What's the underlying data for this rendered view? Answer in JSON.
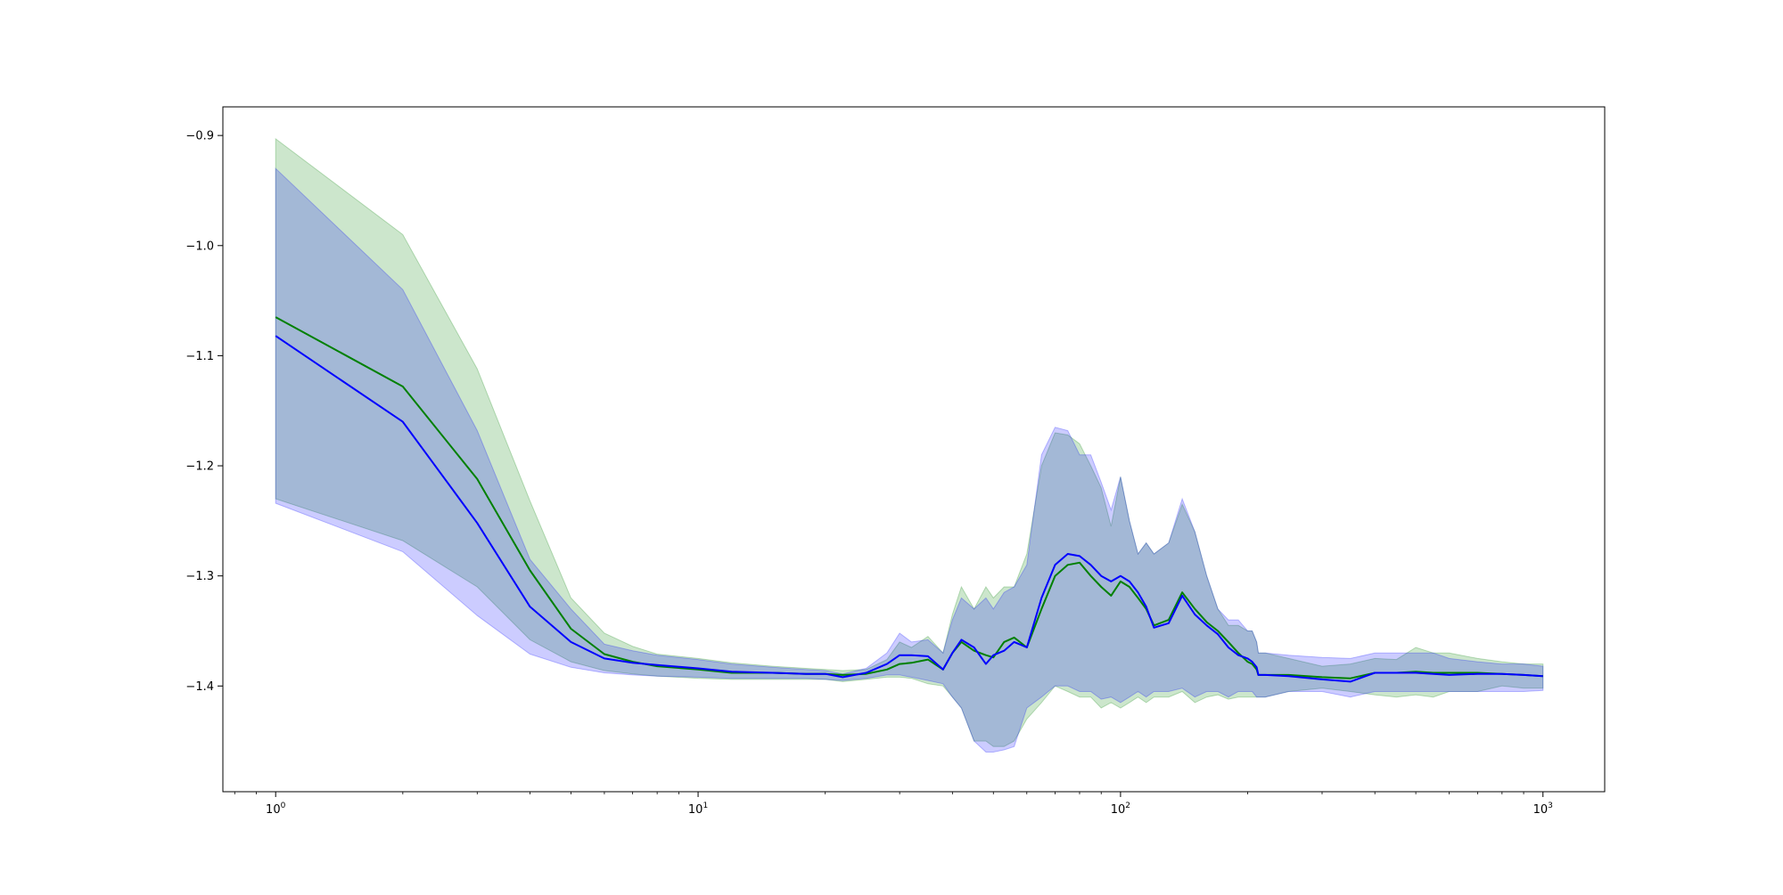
{
  "chart_data": {
    "type": "line",
    "title": "",
    "xlabel": "",
    "ylabel": "",
    "xscale": "log",
    "xlim": [
      0.75,
      1400
    ],
    "ylim": [
      -1.496,
      -0.874
    ],
    "grid": false,
    "legend": "none",
    "x_ticks": [
      {
        "value": 1,
        "base": "10",
        "exp": "0"
      },
      {
        "value": 10,
        "base": "10",
        "exp": "1"
      },
      {
        "value": 100,
        "base": "10",
        "exp": "2"
      },
      {
        "value": 1000,
        "base": "10",
        "exp": "3"
      }
    ],
    "y_ticks": [
      {
        "value": -0.9,
        "label": "−0.9"
      },
      {
        "value": -1.0,
        "label": "−1.0"
      },
      {
        "value": -1.1,
        "label": "−1.1"
      },
      {
        "value": -1.2,
        "label": "−1.2"
      },
      {
        "value": -1.3,
        "label": "−1.3"
      },
      {
        "value": -1.4,
        "label": "−1.4"
      }
    ],
    "x": [
      1,
      2,
      3,
      4,
      5,
      6,
      7,
      8,
      10,
      12,
      15,
      18,
      20,
      22,
      25,
      28,
      30,
      32,
      35,
      38,
      40,
      42,
      45,
      48,
      50,
      53,
      56,
      60,
      65,
      70,
      75,
      80,
      85,
      90,
      95,
      100,
      105,
      110,
      115,
      120,
      130,
      140,
      150,
      160,
      170,
      180,
      190,
      200,
      205,
      210,
      212,
      220,
      250,
      300,
      350,
      400,
      450,
      500,
      550,
      600,
      700,
      800,
      900,
      1000
    ],
    "series": [
      {
        "color": "#008000",
        "band_color": "#008000",
        "band_opacity": 0.2,
        "values": [
          -1.065,
          -1.128,
          -1.212,
          -1.295,
          -1.348,
          -1.371,
          -1.378,
          -1.382,
          -1.385,
          -1.388,
          -1.388,
          -1.389,
          -1.389,
          -1.39,
          -1.389,
          -1.385,
          -1.38,
          -1.379,
          -1.376,
          -1.385,
          -1.37,
          -1.36,
          -1.368,
          -1.372,
          -1.374,
          -1.36,
          -1.356,
          -1.365,
          -1.33,
          -1.3,
          -1.29,
          -1.288,
          -1.3,
          -1.31,
          -1.318,
          -1.305,
          -1.31,
          -1.32,
          -1.33,
          -1.345,
          -1.34,
          -1.315,
          -1.33,
          -1.342,
          -1.35,
          -1.36,
          -1.37,
          -1.378,
          -1.38,
          -1.385,
          -1.39,
          -1.39,
          -1.39,
          -1.392,
          -1.393,
          -1.388,
          -1.388,
          -1.387,
          -1.388,
          -1.388,
          -1.388,
          -1.389,
          -1.39,
          -1.391
        ],
        "upper": [
          -0.903,
          -0.99,
          -1.112,
          -1.232,
          -1.32,
          -1.352,
          -1.364,
          -1.371,
          -1.375,
          -1.379,
          -1.382,
          -1.384,
          -1.385,
          -1.386,
          -1.385,
          -1.376,
          -1.36,
          -1.365,
          -1.355,
          -1.37,
          -1.335,
          -1.31,
          -1.33,
          -1.31,
          -1.32,
          -1.31,
          -1.31,
          -1.28,
          -1.2,
          -1.17,
          -1.172,
          -1.18,
          -1.2,
          -1.22,
          -1.255,
          -1.21,
          -1.25,
          -1.28,
          -1.27,
          -1.28,
          -1.27,
          -1.235,
          -1.26,
          -1.3,
          -1.33,
          -1.345,
          -1.345,
          -1.35,
          -1.35,
          -1.36,
          -1.37,
          -1.37,
          -1.375,
          -1.382,
          -1.38,
          -1.375,
          -1.376,
          -1.365,
          -1.37,
          -1.37,
          -1.375,
          -1.378,
          -1.38,
          -1.38
        ],
        "lower": [
          -1.23,
          -1.268,
          -1.31,
          -1.358,
          -1.378,
          -1.386,
          -1.389,
          -1.391,
          -1.393,
          -1.394,
          -1.394,
          -1.394,
          -1.394,
          -1.396,
          -1.394,
          -1.392,
          -1.392,
          -1.393,
          -1.398,
          -1.4,
          -1.41,
          -1.42,
          -1.45,
          -1.45,
          -1.455,
          -1.455,
          -1.45,
          -1.43,
          -1.415,
          -1.4,
          -1.405,
          -1.41,
          -1.41,
          -1.42,
          -1.415,
          -1.42,
          -1.415,
          -1.41,
          -1.415,
          -1.41,
          -1.41,
          -1.405,
          -1.415,
          -1.41,
          -1.408,
          -1.412,
          -1.41,
          -1.41,
          -1.41,
          -1.41,
          -1.41,
          -1.41,
          -1.405,
          -1.402,
          -1.405,
          -1.408,
          -1.41,
          -1.408,
          -1.41,
          -1.405,
          -1.405,
          -1.4,
          -1.402,
          -1.402
        ]
      },
      {
        "color": "#0000ff",
        "band_color": "#0000ff",
        "band_opacity": 0.2,
        "values": [
          -1.082,
          -1.16,
          -1.252,
          -1.328,
          -1.36,
          -1.375,
          -1.379,
          -1.381,
          -1.384,
          -1.387,
          -1.388,
          -1.389,
          -1.389,
          -1.392,
          -1.388,
          -1.38,
          -1.372,
          -1.372,
          -1.373,
          -1.385,
          -1.37,
          -1.358,
          -1.365,
          -1.38,
          -1.372,
          -1.368,
          -1.36,
          -1.365,
          -1.32,
          -1.29,
          -1.28,
          -1.282,
          -1.29,
          -1.3,
          -1.305,
          -1.3,
          -1.305,
          -1.315,
          -1.328,
          -1.347,
          -1.343,
          -1.318,
          -1.335,
          -1.345,
          -1.353,
          -1.365,
          -1.372,
          -1.375,
          -1.378,
          -1.383,
          -1.39,
          -1.39,
          -1.391,
          -1.394,
          -1.396,
          -1.388,
          -1.388,
          -1.388,
          -1.389,
          -1.39,
          -1.389,
          -1.389,
          -1.39,
          -1.391
        ],
        "upper": [
          -0.93,
          -1.04,
          -1.168,
          -1.285,
          -1.33,
          -1.362,
          -1.368,
          -1.372,
          -1.376,
          -1.38,
          -1.383,
          -1.385,
          -1.386,
          -1.389,
          -1.384,
          -1.37,
          -1.352,
          -1.36,
          -1.358,
          -1.37,
          -1.34,
          -1.32,
          -1.33,
          -1.32,
          -1.33,
          -1.315,
          -1.31,
          -1.29,
          -1.19,
          -1.165,
          -1.168,
          -1.19,
          -1.19,
          -1.215,
          -1.24,
          -1.21,
          -1.25,
          -1.28,
          -1.27,
          -1.28,
          -1.27,
          -1.23,
          -1.26,
          -1.3,
          -1.33,
          -1.34,
          -1.34,
          -1.35,
          -1.35,
          -1.36,
          -1.37,
          -1.37,
          -1.372,
          -1.374,
          -1.375,
          -1.37,
          -1.37,
          -1.37,
          -1.37,
          -1.375,
          -1.378,
          -1.38,
          -1.38,
          -1.382
        ],
        "lower": [
          -1.234,
          -1.278,
          -1.336,
          -1.371,
          -1.383,
          -1.388,
          -1.39,
          -1.391,
          -1.392,
          -1.393,
          -1.393,
          -1.393,
          -1.394,
          -1.395,
          -1.393,
          -1.39,
          -1.39,
          -1.392,
          -1.395,
          -1.398,
          -1.41,
          -1.42,
          -1.45,
          -1.46,
          -1.46,
          -1.458,
          -1.455,
          -1.42,
          -1.41,
          -1.4,
          -1.4,
          -1.405,
          -1.405,
          -1.412,
          -1.41,
          -1.415,
          -1.41,
          -1.405,
          -1.41,
          -1.405,
          -1.405,
          -1.402,
          -1.41,
          -1.405,
          -1.405,
          -1.41,
          -1.405,
          -1.405,
          -1.405,
          -1.41,
          -1.41,
          -1.41,
          -1.405,
          -1.405,
          -1.41,
          -1.405,
          -1.405,
          -1.405,
          -1.405,
          -1.405,
          -1.405,
          -1.405,
          -1.405,
          -1.404
        ]
      }
    ]
  }
}
